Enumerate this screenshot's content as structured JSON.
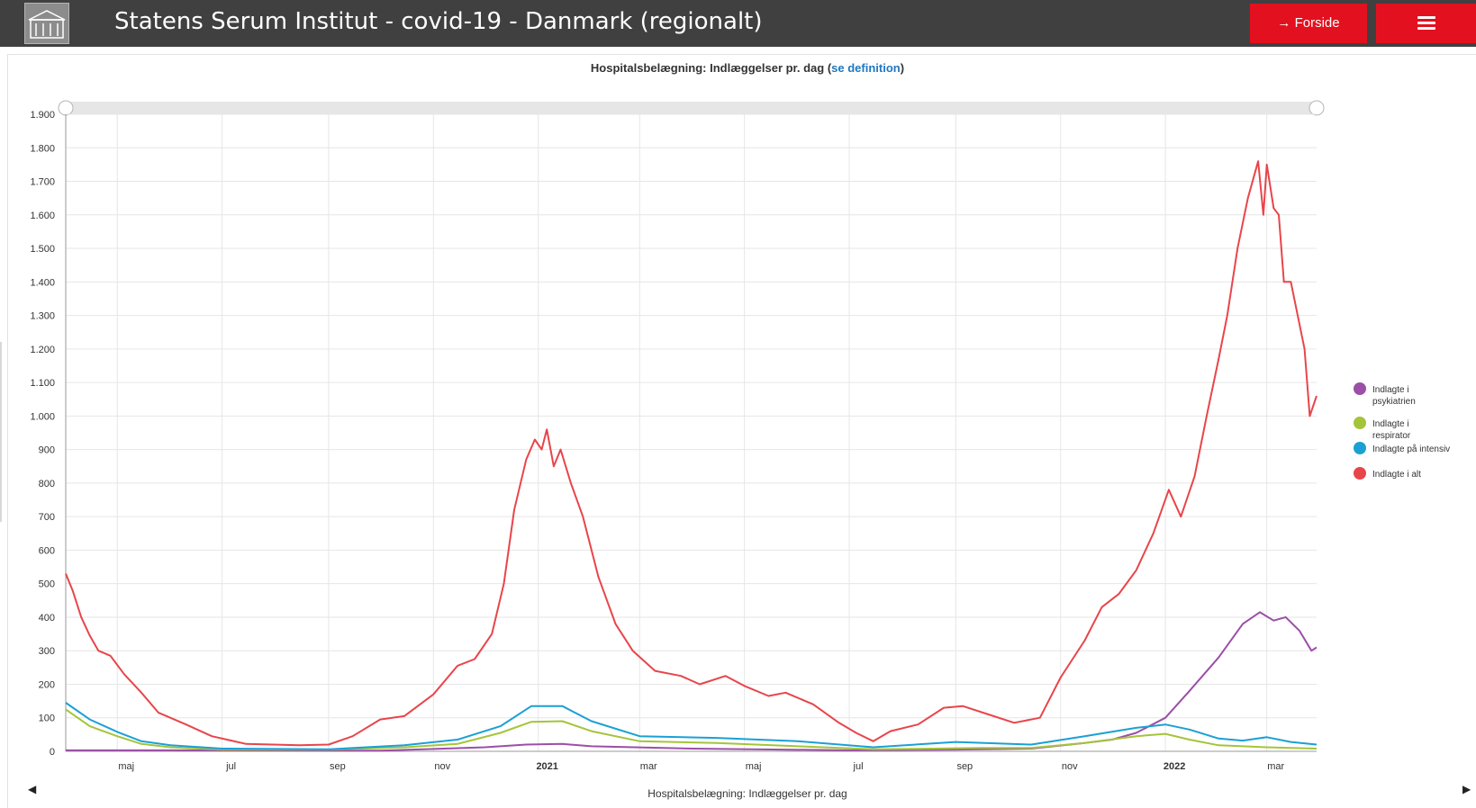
{
  "header": {
    "title": "Statens Serum Institut - covid-19 - Danmark (regionalt)",
    "forside_label": "→ Forside",
    "logo_icon": "building-icon",
    "menu_icon": "hamburger-menu-icon",
    "colors": {
      "bar": "#404040",
      "button": "#e3101f"
    }
  },
  "chart_title": {
    "prefix": "Hospitalsbelægning: Indlæggelser pr. dag (",
    "link": "se definition",
    "suffix": ")"
  },
  "bottom_label": "Hospitalsbelægning: Indlæggelser pr. dag",
  "nav": {
    "left_arrow": "◀",
    "right_arrow": "▶"
  },
  "chart_data": {
    "type": "line",
    "title": "Hospitalsbelægning: Indlæggelser pr. dag",
    "ylim": [
      0,
      1900
    ],
    "y_ticks": [
      0,
      100,
      200,
      300,
      400,
      500,
      600,
      700,
      800,
      900,
      1000,
      1100,
      1200,
      1300,
      1400,
      1500,
      1600,
      1700,
      1800,
      1900
    ],
    "y_tick_labels": [
      "0",
      "100",
      "200",
      "300",
      "400",
      "500",
      "600",
      "700",
      "800",
      "900",
      "1.000",
      "1.100",
      "1.200",
      "1.300",
      "1.400",
      "1.500",
      "1.600",
      "1.700",
      "1.800",
      "1.900"
    ],
    "x_range": [
      "2020-04-01",
      "2022-03-30"
    ],
    "x_ticks": [
      {
        "date": "2020-05-01",
        "label": "maj",
        "bold": false
      },
      {
        "date": "2020-07-01",
        "label": "jul",
        "bold": false
      },
      {
        "date": "2020-09-01",
        "label": "sep",
        "bold": false
      },
      {
        "date": "2020-11-01",
        "label": "nov",
        "bold": false
      },
      {
        "date": "2021-01-01",
        "label": "2021",
        "bold": true
      },
      {
        "date": "2021-03-01",
        "label": "mar",
        "bold": false
      },
      {
        "date": "2021-05-01",
        "label": "maj",
        "bold": false
      },
      {
        "date": "2021-07-01",
        "label": "jul",
        "bold": false
      },
      {
        "date": "2021-09-01",
        "label": "sep",
        "bold": false
      },
      {
        "date": "2021-11-01",
        "label": "nov",
        "bold": false
      },
      {
        "date": "2022-01-01",
        "label": "2022",
        "bold": true
      },
      {
        "date": "2022-03-01",
        "label": "mar",
        "bold": false
      }
    ],
    "grid": true,
    "legend_position": "right",
    "series": [
      {
        "name": "Indlagte i psykiatrien",
        "color": "#9b4fa6",
        "points": [
          [
            "2020-04-01",
            3
          ],
          [
            "2020-06-01",
            3
          ],
          [
            "2020-10-01",
            2
          ],
          [
            "2020-12-01",
            12
          ],
          [
            "2020-12-25",
            20
          ],
          [
            "2021-01-15",
            22
          ],
          [
            "2021-02-01",
            15
          ],
          [
            "2021-04-01",
            8
          ],
          [
            "2021-07-01",
            3
          ],
          [
            "2021-09-01",
            5
          ],
          [
            "2021-10-15",
            8
          ],
          [
            "2021-11-15",
            25
          ],
          [
            "2021-12-01",
            35
          ],
          [
            "2021-12-15",
            55
          ],
          [
            "2022-01-01",
            100
          ],
          [
            "2022-01-15",
            180
          ],
          [
            "2022-02-01",
            280
          ],
          [
            "2022-02-15",
            380
          ],
          [
            "2022-02-25",
            415
          ],
          [
            "2022-03-05",
            390
          ],
          [
            "2022-03-12",
            400
          ],
          [
            "2022-03-20",
            360
          ],
          [
            "2022-03-27",
            300
          ],
          [
            "2022-03-30",
            310
          ]
        ]
      },
      {
        "name": "Indlagte i respirator",
        "color": "#a5c43a",
        "points": [
          [
            "2020-04-01",
            125
          ],
          [
            "2020-04-15",
            75
          ],
          [
            "2020-05-01",
            45
          ],
          [
            "2020-05-15",
            22
          ],
          [
            "2020-06-01",
            12
          ],
          [
            "2020-07-01",
            5
          ],
          [
            "2020-09-01",
            5
          ],
          [
            "2020-10-15",
            12
          ],
          [
            "2020-11-15",
            22
          ],
          [
            "2020-12-10",
            55
          ],
          [
            "2020-12-28",
            88
          ],
          [
            "2021-01-15",
            90
          ],
          [
            "2021-02-01",
            60
          ],
          [
            "2021-03-01",
            30
          ],
          [
            "2021-04-15",
            25
          ],
          [
            "2021-06-01",
            15
          ],
          [
            "2021-07-15",
            6
          ],
          [
            "2021-09-15",
            10
          ],
          [
            "2021-10-15",
            10
          ],
          [
            "2021-11-15",
            25
          ],
          [
            "2021-12-15",
            45
          ],
          [
            "2022-01-01",
            52
          ],
          [
            "2022-01-15",
            35
          ],
          [
            "2022-02-01",
            18
          ],
          [
            "2022-03-01",
            12
          ],
          [
            "2022-03-30",
            8
          ]
        ]
      },
      {
        "name": "Indlagte på intensiv",
        "color": "#1ba0d4",
        "points": [
          [
            "2020-04-01",
            145
          ],
          [
            "2020-04-15",
            95
          ],
          [
            "2020-05-01",
            58
          ],
          [
            "2020-05-15",
            30
          ],
          [
            "2020-06-01",
            18
          ],
          [
            "2020-07-01",
            8
          ],
          [
            "2020-09-01",
            6
          ],
          [
            "2020-10-15",
            18
          ],
          [
            "2020-11-15",
            35
          ],
          [
            "2020-12-10",
            75
          ],
          [
            "2020-12-28",
            135
          ],
          [
            "2021-01-15",
            135
          ],
          [
            "2021-02-01",
            90
          ],
          [
            "2021-03-01",
            45
          ],
          [
            "2021-04-15",
            40
          ],
          [
            "2021-06-01",
            30
          ],
          [
            "2021-07-15",
            12
          ],
          [
            "2021-09-01",
            28
          ],
          [
            "2021-10-15",
            20
          ],
          [
            "2021-11-15",
            45
          ],
          [
            "2021-12-15",
            70
          ],
          [
            "2022-01-01",
            80
          ],
          [
            "2022-01-15",
            65
          ],
          [
            "2022-02-01",
            38
          ],
          [
            "2022-02-15",
            32
          ],
          [
            "2022-03-01",
            42
          ],
          [
            "2022-03-15",
            28
          ],
          [
            "2022-03-30",
            20
          ]
        ]
      },
      {
        "name": "Indlagte i alt",
        "color": "#e8454b",
        "points": [
          [
            "2020-04-01",
            530
          ],
          [
            "2020-04-05",
            480
          ],
          [
            "2020-04-10",
            400
          ],
          [
            "2020-04-15",
            345
          ],
          [
            "2020-04-20",
            300
          ],
          [
            "2020-04-27",
            285
          ],
          [
            "2020-05-05",
            230
          ],
          [
            "2020-05-15",
            175
          ],
          [
            "2020-05-25",
            115
          ],
          [
            "2020-06-10",
            80
          ],
          [
            "2020-06-25",
            45
          ],
          [
            "2020-07-15",
            22
          ],
          [
            "2020-08-15",
            18
          ],
          [
            "2020-09-01",
            20
          ],
          [
            "2020-09-15",
            45
          ],
          [
            "2020-10-01",
            95
          ],
          [
            "2020-10-15",
            105
          ],
          [
            "2020-11-01",
            170
          ],
          [
            "2020-11-15",
            255
          ],
          [
            "2020-11-25",
            275
          ],
          [
            "2020-12-05",
            350
          ],
          [
            "2020-12-12",
            500
          ],
          [
            "2020-12-18",
            720
          ],
          [
            "2020-12-25",
            870
          ],
          [
            "2020-12-30",
            930
          ],
          [
            "2021-01-03",
            900
          ],
          [
            "2021-01-06",
            960
          ],
          [
            "2021-01-10",
            850
          ],
          [
            "2021-01-14",
            900
          ],
          [
            "2021-01-20",
            800
          ],
          [
            "2021-01-27",
            700
          ],
          [
            "2021-02-05",
            520
          ],
          [
            "2021-02-15",
            380
          ],
          [
            "2021-02-25",
            300
          ],
          [
            "2021-03-10",
            240
          ],
          [
            "2021-03-25",
            225
          ],
          [
            "2021-04-05",
            200
          ],
          [
            "2021-04-20",
            225
          ],
          [
            "2021-05-01",
            195
          ],
          [
            "2021-05-15",
            165
          ],
          [
            "2021-05-25",
            175
          ],
          [
            "2021-06-10",
            140
          ],
          [
            "2021-06-25",
            85
          ],
          [
            "2021-07-05",
            55
          ],
          [
            "2021-07-15",
            30
          ],
          [
            "2021-07-25",
            60
          ],
          [
            "2021-08-10",
            80
          ],
          [
            "2021-08-25",
            130
          ],
          [
            "2021-09-05",
            135
          ],
          [
            "2021-09-20",
            110
          ],
          [
            "2021-10-05",
            85
          ],
          [
            "2021-10-20",
            100
          ],
          [
            "2021-11-01",
            220
          ],
          [
            "2021-11-15",
            330
          ],
          [
            "2021-11-25",
            430
          ],
          [
            "2021-12-05",
            470
          ],
          [
            "2021-12-15",
            540
          ],
          [
            "2021-12-25",
            650
          ],
          [
            "2022-01-03",
            780
          ],
          [
            "2022-01-10",
            700
          ],
          [
            "2022-01-18",
            820
          ],
          [
            "2022-01-25",
            1000
          ],
          [
            "2022-02-01",
            1170
          ],
          [
            "2022-02-06",
            1300
          ],
          [
            "2022-02-12",
            1500
          ],
          [
            "2022-02-18",
            1650
          ],
          [
            "2022-02-24",
            1760
          ],
          [
            "2022-02-27",
            1600
          ],
          [
            "2022-03-01",
            1750
          ],
          [
            "2022-03-05",
            1620
          ],
          [
            "2022-03-08",
            1600
          ],
          [
            "2022-03-11",
            1400
          ],
          [
            "2022-03-15",
            1400
          ],
          [
            "2022-03-19",
            1300
          ],
          [
            "2022-03-23",
            1200
          ],
          [
            "2022-03-26",
            1000
          ],
          [
            "2022-03-30",
            1060
          ]
        ]
      }
    ]
  }
}
